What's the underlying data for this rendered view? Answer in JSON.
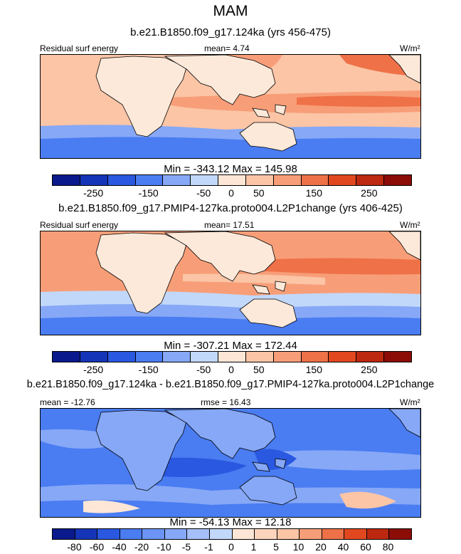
{
  "season": "MAM",
  "palette": [
    "#0a1a8c",
    "#1535b8",
    "#2a58e0",
    "#4a7cf2",
    "#86a8f6",
    "#c2d8fa",
    "#fde6d6",
    "#fbc5a6",
    "#f79e78",
    "#ef7148",
    "#e2481f",
    "#bc2810",
    "#8c0c08"
  ],
  "land_color": "#fce9da",
  "panels": [
    {
      "title": "b.e21.B1850.f09_g17.124ka (yrs 456-475)",
      "left_label": "Residual surf energy",
      "center_label": "mean=  4.74",
      "units": "W/m²",
      "min_max": "Min = -343.12 Max = 145.98",
      "tick_labels": [
        "-250",
        "-150",
        "-50",
        "0",
        "50",
        "150",
        "250"
      ]
    },
    {
      "title": "b.e21.B1850.f09_g17.PMIP4-127ka.proto004.L2P1change (yrs 406-425)",
      "left_label": "Residual surf energy",
      "center_label": "mean=  17.51",
      "units": "W/m²",
      "min_max": "Min = -307.21 Max = 172.44",
      "tick_labels": [
        "-250",
        "-150",
        "-50",
        "0",
        "50",
        "150",
        "250"
      ]
    },
    {
      "title": "b.e21.B1850.f09_g17.124ka - b.e21.B1850.f09_g17.PMIP4-127ka.proto004.L2P1change",
      "left_label": "mean = -12.76",
      "center_label": "rmse =  16.43",
      "units": "W/m²",
      "min_max": "Min = -54.13 Max = 12.18",
      "tick_labels": [
        "-80",
        "-60",
        "-40",
        "-20",
        "-10",
        "-5",
        "-1",
        "0",
        "1",
        "5",
        "10",
        "20",
        "40",
        "60",
        "80"
      ]
    }
  ]
}
